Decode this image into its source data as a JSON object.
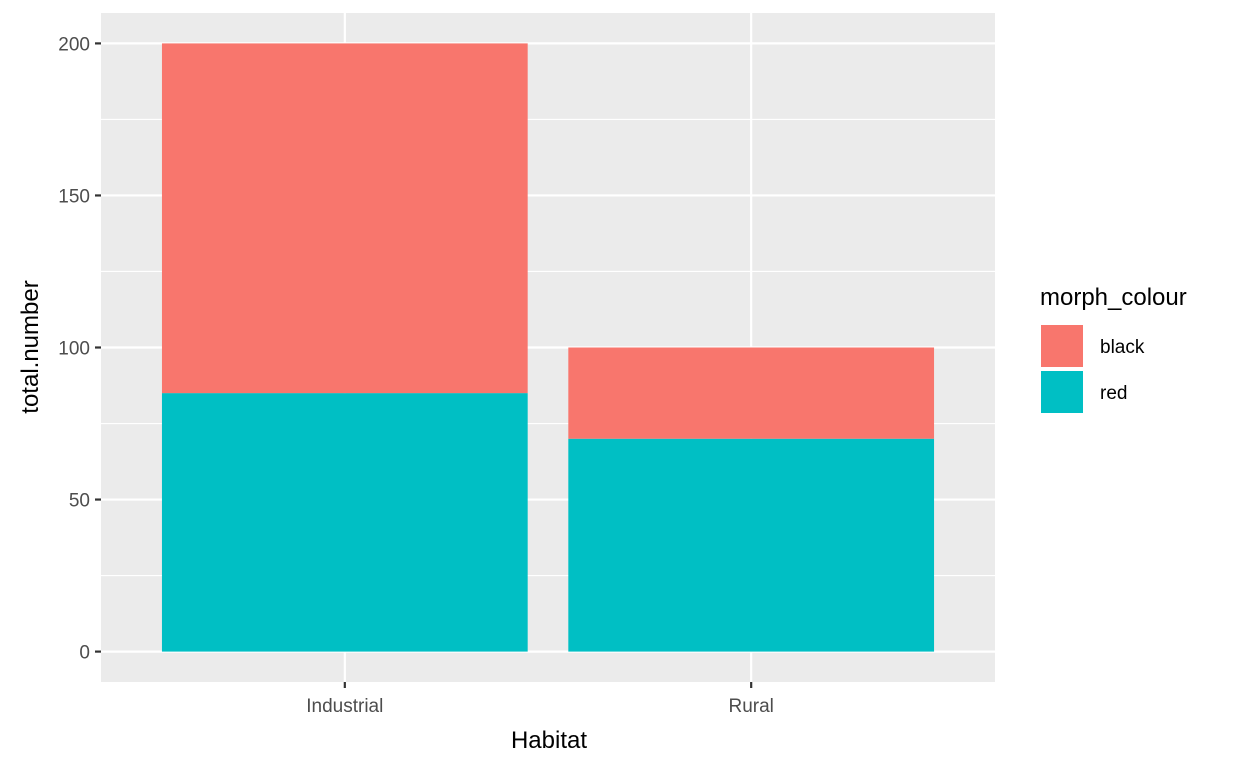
{
  "chart_data": {
    "type": "bar",
    "stacked": true,
    "categories": [
      "Industrial",
      "Rural"
    ],
    "series": [
      {
        "name": "black",
        "values": [
          115,
          30
        ],
        "color": "#F8766D"
      },
      {
        "name": "red",
        "values": [
          85,
          70
        ],
        "color": "#00BFC4"
      }
    ],
    "xlabel": "Habitat",
    "ylabel": "total.number",
    "ylim": [
      -10,
      210
    ],
    "yticks": [
      0,
      50,
      100,
      150,
      200
    ],
    "legend": {
      "title": "morph_colour",
      "items": [
        "black",
        "red"
      ],
      "position": "right"
    },
    "panel_background": "#EBEBEB",
    "grid": true
  }
}
